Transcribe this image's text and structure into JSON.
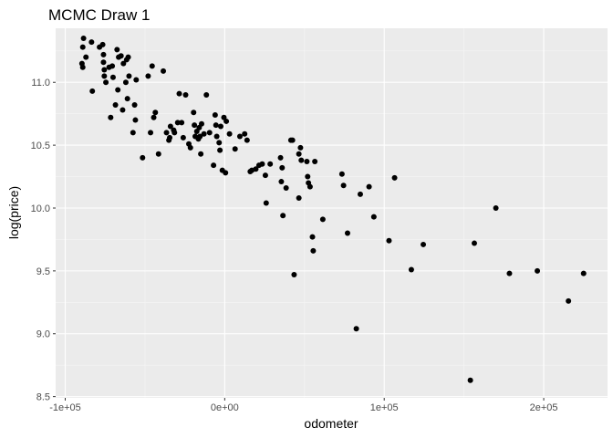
{
  "chart_data": {
    "type": "scatter",
    "title": "MCMC Draw 1",
    "xlabel": "odometer",
    "ylabel": "log(price)",
    "xlim": [
      -106000,
      240000
    ],
    "ylim": [
      8.49,
      11.43
    ],
    "xticks": [
      -100000,
      0,
      100000,
      200000
    ],
    "xtick_labels": [
      "-1e+05",
      "0e+00",
      "1e+05",
      "2e+05"
    ],
    "yticks": [
      8.5,
      9.0,
      9.5,
      10.0,
      10.5,
      11.0
    ],
    "ytick_labels": [
      "8.5",
      "9.0",
      "9.5",
      "10.0",
      "10.5",
      "11.0"
    ],
    "grid": true,
    "legend": "none",
    "colors": {
      "panel": "#ebebeb",
      "grid_major": "#ffffff",
      "grid_minor": "#f5f5f5",
      "point": "#000000",
      "tick_label": "#4d4d4d"
    },
    "points": [
      [
        -88500,
        11.35
      ],
      [
        -89000,
        11.28
      ],
      [
        -89500,
        11.15
      ],
      [
        -89000,
        11.12
      ],
      [
        -87000,
        11.2
      ],
      [
        -83500,
        11.32
      ],
      [
        -83000,
        10.93
      ],
      [
        -78500,
        11.28
      ],
      [
        -76500,
        11.3
      ],
      [
        -76000,
        11.22
      ],
      [
        -75500,
        11.1
      ],
      [
        -76000,
        11.16
      ],
      [
        -75500,
        11.05
      ],
      [
        -74500,
        11.0
      ],
      [
        -72500,
        11.12
      ],
      [
        -71500,
        10.72
      ],
      [
        -70500,
        11.13
      ],
      [
        -70000,
        11.04
      ],
      [
        -68500,
        10.82
      ],
      [
        -67500,
        11.26
      ],
      [
        -67000,
        10.94
      ],
      [
        -66500,
        11.2
      ],
      [
        -65000,
        11.21
      ],
      [
        -64000,
        10.78
      ],
      [
        -63500,
        11.15
      ],
      [
        -62000,
        11.0
      ],
      [
        -61500,
        11.18
      ],
      [
        -61000,
        10.87
      ],
      [
        -60500,
        11.2
      ],
      [
        -60000,
        11.05
      ],
      [
        -57500,
        10.6
      ],
      [
        -56500,
        10.82
      ],
      [
        -56000,
        10.7
      ],
      [
        -55500,
        11.02
      ],
      [
        -51500,
        10.4
      ],
      [
        -48000,
        11.05
      ],
      [
        -46500,
        10.6
      ],
      [
        -45500,
        11.13
      ],
      [
        -44500,
        10.72
      ],
      [
        -43500,
        10.76
      ],
      [
        -41500,
        10.43
      ],
      [
        -38500,
        11.09
      ],
      [
        -36500,
        10.6
      ],
      [
        -35000,
        10.54
      ],
      [
        -34500,
        10.56
      ],
      [
        -34000,
        10.65
      ],
      [
        -32000,
        10.62
      ],
      [
        -31500,
        10.6
      ],
      [
        -29500,
        10.68
      ],
      [
        -28500,
        10.91
      ],
      [
        -27000,
        10.68
      ],
      [
        -26000,
        10.56
      ],
      [
        -24500,
        10.9
      ],
      [
        -22500,
        10.51
      ],
      [
        -21500,
        10.48
      ],
      [
        -19500,
        10.76
      ],
      [
        -19000,
        10.66
      ],
      [
        -18500,
        10.57
      ],
      [
        -17500,
        10.61
      ],
      [
        -16500,
        10.55
      ],
      [
        -16000,
        10.64
      ],
      [
        -15500,
        10.57
      ],
      [
        -15000,
        10.43
      ],
      [
        -14500,
        10.67
      ],
      [
        -13000,
        10.59
      ],
      [
        -11500,
        10.9
      ],
      [
        -9500,
        10.6
      ],
      [
        -7000,
        10.34
      ],
      [
        -6000,
        10.74
      ],
      [
        -5500,
        10.66
      ],
      [
        -5000,
        10.57
      ],
      [
        -3500,
        10.52
      ],
      [
        -3000,
        10.46
      ],
      [
        -2500,
        10.65
      ],
      [
        -1500,
        10.3
      ],
      [
        -500,
        10.72
      ],
      [
        500,
        10.28
      ],
      [
        1000,
        10.69
      ],
      [
        3000,
        10.59
      ],
      [
        6500,
        10.47
      ],
      [
        9500,
        10.57
      ],
      [
        12500,
        10.59
      ],
      [
        14000,
        10.54
      ],
      [
        16000,
        10.29
      ],
      [
        17000,
        10.3
      ],
      [
        19500,
        10.31
      ],
      [
        21500,
        10.34
      ],
      [
        23500,
        10.35
      ],
      [
        25500,
        10.26
      ],
      [
        26000,
        10.04
      ],
      [
        28500,
        10.35
      ],
      [
        35000,
        10.4
      ],
      [
        35500,
        10.21
      ],
      [
        36000,
        10.32
      ],
      [
        36500,
        9.94
      ],
      [
        38500,
        10.16
      ],
      [
        41500,
        10.54
      ],
      [
        42500,
        10.54
      ],
      [
        43500,
        9.47
      ],
      [
        46500,
        10.08
      ],
      [
        46500,
        10.43
      ],
      [
        47500,
        10.48
      ],
      [
        48000,
        10.38
      ],
      [
        51500,
        10.37
      ],
      [
        52000,
        10.25
      ],
      [
        52500,
        10.2
      ],
      [
        53500,
        10.17
      ],
      [
        55000,
        9.77
      ],
      [
        55500,
        9.66
      ],
      [
        56500,
        10.37
      ],
      [
        61500,
        9.91
      ],
      [
        73500,
        10.27
      ],
      [
        74500,
        10.18
      ],
      [
        77000,
        9.8
      ],
      [
        82500,
        9.04
      ],
      [
        85000,
        10.11
      ],
      [
        90500,
        10.17
      ],
      [
        93500,
        9.93
      ],
      [
        103000,
        9.74
      ],
      [
        106500,
        10.24
      ],
      [
        117000,
        9.51
      ],
      [
        124500,
        9.71
      ],
      [
        154000,
        8.63
      ],
      [
        156500,
        9.72
      ],
      [
        170000,
        10.0
      ],
      [
        178500,
        9.48
      ],
      [
        196000,
        9.5
      ],
      [
        215500,
        9.26
      ],
      [
        225000,
        9.48
      ]
    ]
  }
}
